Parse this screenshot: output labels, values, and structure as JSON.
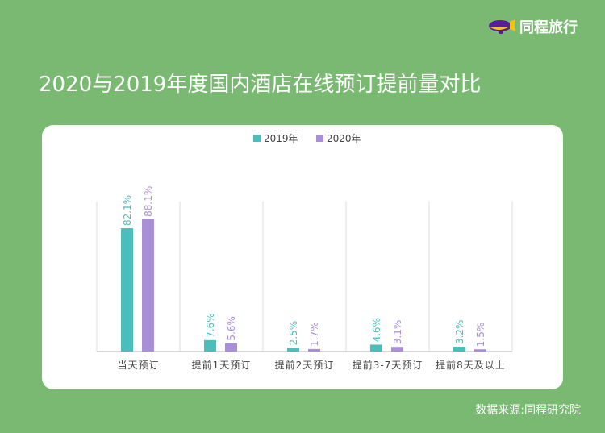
{
  "brand": {
    "name": "同程旅行",
    "logo": "airship-logo"
  },
  "title": "2020与2019年度国内酒店在线预订提前量对比",
  "source": "数据来源:同程研究院",
  "colors": {
    "background": "#79b972",
    "s2019": "#4bbdbb",
    "s2020": "#a98ed8"
  },
  "chart_data": {
    "type": "bar",
    "categories": [
      "当天预订",
      "提前1天预订",
      "提前2天预订",
      "提前3-7天预订",
      "提前8天及以上"
    ],
    "series": [
      {
        "name": "2019年",
        "values": [
          82.1,
          7.6,
          2.5,
          4.6,
          3.2
        ],
        "labels": [
          "82.1%",
          "7.6%",
          "2.5%",
          "4.6%",
          "3.2%"
        ]
      },
      {
        "name": "2020年",
        "values": [
          88.1,
          5.6,
          1.7,
          3.1,
          1.5
        ],
        "labels": [
          "88.1%",
          "5.6%",
          "1.7%",
          "3.1%",
          "1.5%"
        ]
      }
    ],
    "legend": "top",
    "grid": "vertical category separators",
    "ylim": [
      0,
      100
    ]
  }
}
